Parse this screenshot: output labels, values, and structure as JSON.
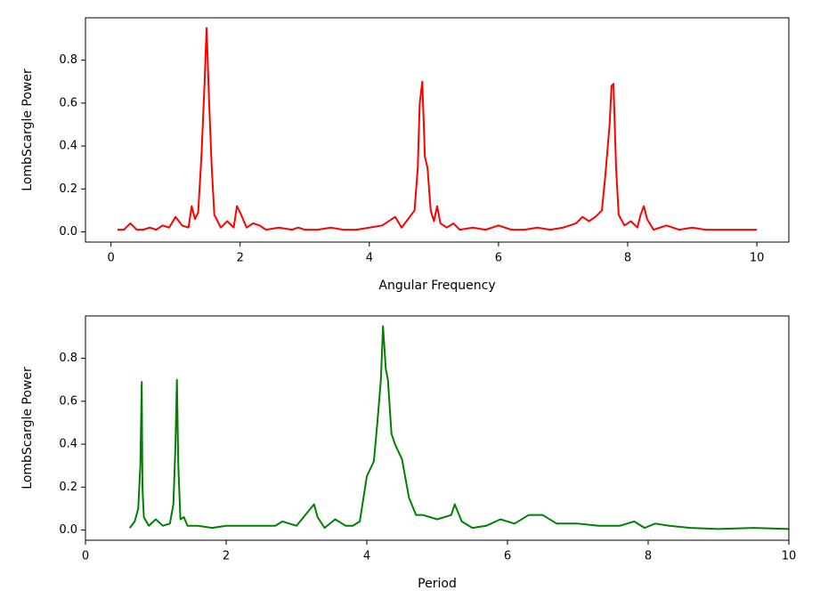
{
  "chart_data": [
    {
      "type": "line",
      "xlabel": "Angular Frequency",
      "ylabel": "LombScargle Power",
      "color": "#ff0000",
      "x": [
        0.1,
        0.2,
        0.3,
        0.4,
        0.5,
        0.6,
        0.7,
        0.8,
        0.9,
        1.0,
        1.1,
        1.2,
        1.25,
        1.3,
        1.35,
        1.4,
        1.45,
        1.48,
        1.52,
        1.56,
        1.6,
        1.7,
        1.8,
        1.9,
        1.95,
        2.0,
        2.1,
        2.2,
        2.3,
        2.4,
        2.6,
        2.8,
        2.9,
        3.0,
        3.2,
        3.4,
        3.6,
        3.8,
        4.0,
        4.2,
        4.4,
        4.5,
        4.6,
        4.7,
        4.75,
        4.78,
        4.82,
        4.86,
        4.9,
        4.95,
        5.0,
        5.05,
        5.1,
        5.2,
        5.3,
        5.4,
        5.6,
        5.8,
        6.0,
        6.2,
        6.4,
        6.6,
        6.8,
        7.0,
        7.2,
        7.3,
        7.4,
        7.5,
        7.6,
        7.65,
        7.72,
        7.75,
        7.78,
        7.82,
        7.86,
        7.95,
        8.05,
        8.15,
        8.2,
        8.25,
        8.3,
        8.4,
        8.6,
        8.8,
        9.0,
        9.2,
        9.4,
        9.6,
        9.8,
        10.0
      ],
      "values": [
        0.01,
        0.01,
        0.04,
        0.01,
        0.01,
        0.02,
        0.01,
        0.03,
        0.02,
        0.07,
        0.03,
        0.02,
        0.12,
        0.06,
        0.09,
        0.35,
        0.7,
        0.95,
        0.6,
        0.3,
        0.08,
        0.02,
        0.05,
        0.02,
        0.12,
        0.09,
        0.02,
        0.04,
        0.03,
        0.01,
        0.02,
        0.01,
        0.02,
        0.01,
        0.01,
        0.02,
        0.01,
        0.01,
        0.02,
        0.03,
        0.07,
        0.02,
        0.06,
        0.1,
        0.3,
        0.6,
        0.7,
        0.35,
        0.3,
        0.1,
        0.05,
        0.12,
        0.04,
        0.02,
        0.04,
        0.01,
        0.02,
        0.01,
        0.03,
        0.01,
        0.01,
        0.02,
        0.01,
        0.02,
        0.04,
        0.07,
        0.05,
        0.07,
        0.1,
        0.25,
        0.5,
        0.68,
        0.69,
        0.3,
        0.08,
        0.03,
        0.05,
        0.02,
        0.08,
        0.12,
        0.06,
        0.01,
        0.03,
        0.01,
        0.02,
        0.01,
        0.01,
        0.01,
        0.01,
        0.01
      ],
      "xlim": [
        -0.395,
        10.495
      ],
      "ylim": [
        -0.0475,
        0.9975
      ],
      "xticks": [
        0,
        2,
        4,
        6,
        8,
        10
      ],
      "yticks": [
        {
          "value": 0,
          "label": "0.0"
        },
        0.2,
        0.4,
        0.6,
        0.8
      ]
    },
    {
      "type": "line",
      "xlabel": "Period",
      "ylabel": "LombScargle Power",
      "color": "#008000",
      "x": [
        0.63,
        0.7,
        0.75,
        0.78,
        0.8,
        0.81,
        0.83,
        0.9,
        1.0,
        1.1,
        1.2,
        1.25,
        1.28,
        1.3,
        1.32,
        1.35,
        1.4,
        1.45,
        1.6,
        1.8,
        2.0,
        2.2,
        2.5,
        2.7,
        2.8,
        2.9,
        3.0,
        3.1,
        3.25,
        3.3,
        3.4,
        3.55,
        3.7,
        3.8,
        3.9,
        4.0,
        4.1,
        4.15,
        4.2,
        4.23,
        4.27,
        4.3,
        4.35,
        4.4,
        4.5,
        4.6,
        4.7,
        4.8,
        5.0,
        5.2,
        5.25,
        5.35,
        5.5,
        5.7,
        5.9,
        6.1,
        6.3,
        6.5,
        6.7,
        7.0,
        7.3,
        7.6,
        7.8,
        7.95,
        8.1,
        8.3,
        8.6,
        9.0,
        9.5,
        10.0
      ],
      "values": [
        0.01,
        0.04,
        0.1,
        0.3,
        0.69,
        0.2,
        0.06,
        0.02,
        0.05,
        0.02,
        0.03,
        0.12,
        0.4,
        0.7,
        0.3,
        0.05,
        0.06,
        0.02,
        0.02,
        0.01,
        0.02,
        0.02,
        0.02,
        0.02,
        0.04,
        0.03,
        0.02,
        0.06,
        0.12,
        0.06,
        0.01,
        0.05,
        0.02,
        0.02,
        0.04,
        0.25,
        0.32,
        0.5,
        0.7,
        0.95,
        0.75,
        0.7,
        0.45,
        0.4,
        0.33,
        0.15,
        0.07,
        0.07,
        0.05,
        0.07,
        0.12,
        0.04,
        0.01,
        0.02,
        0.05,
        0.03,
        0.07,
        0.07,
        0.03,
        0.03,
        0.02,
        0.02,
        0.04,
        0.01,
        0.03,
        0.02,
        0.01,
        0.005,
        0.01,
        0.005
      ],
      "xlim": [
        0,
        10
      ],
      "ylim": [
        -0.0475,
        0.9975
      ],
      "xticks": [
        0,
        2,
        4,
        6,
        8,
        10
      ],
      "yticks": [
        {
          "value": 0,
          "label": "0.0"
        },
        0.2,
        0.4,
        0.6,
        0.8
      ]
    }
  ]
}
